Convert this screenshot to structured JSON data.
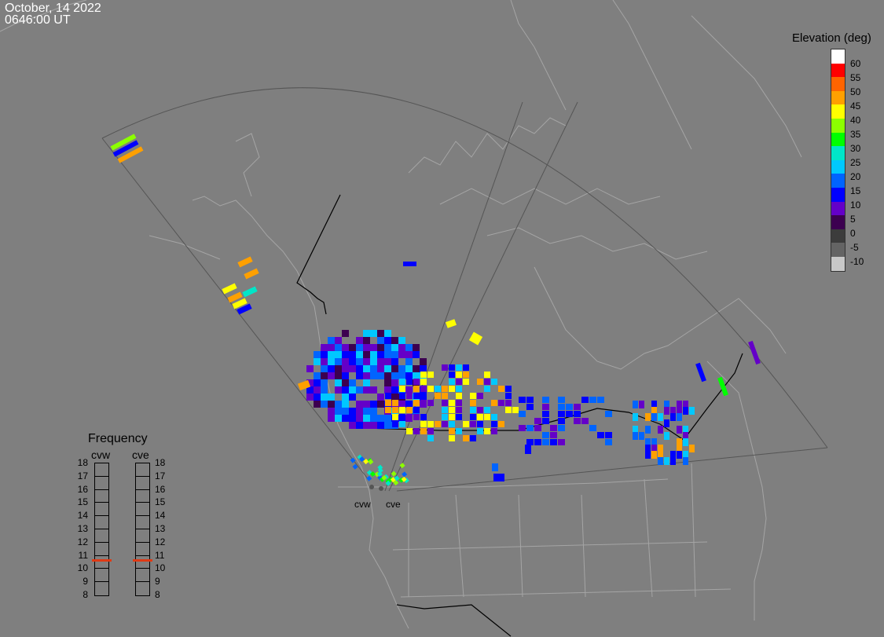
{
  "timestamp": {
    "date": "October, 14 2022",
    "time": "0646:00 UT"
  },
  "elevation_legend": {
    "title": "Elevation (deg)",
    "levels": [
      {
        "label": "60",
        "color": "#ffffff"
      },
      {
        "label": "55",
        "color": "#ff0000"
      },
      {
        "label": "50",
        "color": "#ff6400"
      },
      {
        "label": "45",
        "color": "#ffa000"
      },
      {
        "label": "40",
        "color": "#ffff00"
      },
      {
        "label": "35",
        "color": "#8cff00"
      },
      {
        "label": "30",
        "color": "#00ff00"
      },
      {
        "label": "25",
        "color": "#00e6c8"
      },
      {
        "label": "20",
        "color": "#00c8ff"
      },
      {
        "label": "15",
        "color": "#0064ff"
      },
      {
        "label": "10",
        "color": "#0000ff"
      },
      {
        "label": "5",
        "color": "#6400c8"
      },
      {
        "label": "0",
        "color": "#3c0050"
      },
      {
        "label": "-5",
        "color": "#3c3c3c"
      },
      {
        "label": "-10",
        "color": "#646464"
      },
      {
        "label": "",
        "color": "#c8c8c8"
      }
    ]
  },
  "frequency_panel": {
    "title": "Frequency",
    "radars": [
      "cvw",
      "cve"
    ],
    "scale": [
      "18",
      "17",
      "16",
      "15",
      "14",
      "13",
      "12",
      "11",
      "10",
      "9",
      "8"
    ],
    "current_mhz": {
      "cvw": 10.6,
      "cve": 10.6
    },
    "mark_color": "#e03a14"
  },
  "sites": [
    {
      "name": "cvw"
    },
    {
      "name": "cve"
    }
  ],
  "colors": {
    "background": "#7f7f7f",
    "coastline": "#a8a8a8",
    "border": "#000000",
    "fov": "#555555"
  }
}
